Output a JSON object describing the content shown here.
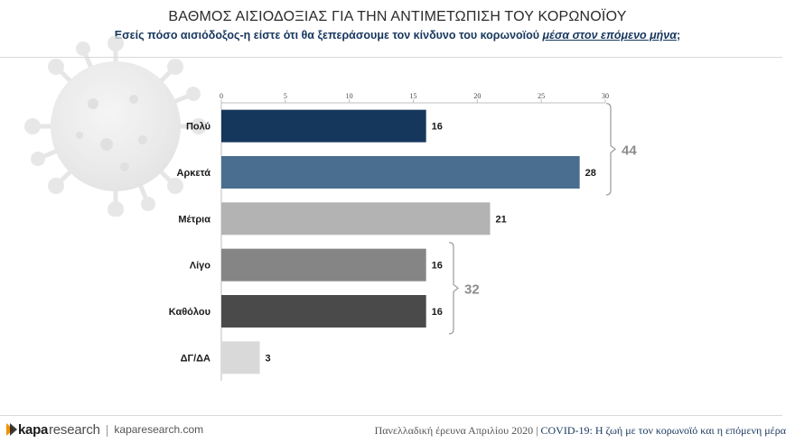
{
  "header": {
    "title": "ΒΑΘΜΟΣ ΑΙΣΙΟΔΟΞΙΑΣ ΓΙΑ ΤΗΝ ΑΝΤΙΜΕΤΩΠΙΣΗ ΤΟΥ ΚΟΡΩΝΟΪΟΥ",
    "subtitle_prefix": "Εσείς πόσο αισιόδοξος-η είστε ότι θα ξεπεράσουμε τον κίνδυνο του κορωνοϊού ",
    "subtitle_emphasis": "μέσα στον επόμενο μήνα",
    "subtitle_suffix": ";"
  },
  "chart_data": {
    "type": "bar",
    "orientation": "horizontal",
    "categories": [
      "Πολύ",
      "Αρκετά",
      "Μέτρια",
      "Λίγο",
      "Καθόλου",
      "ΔΓ/ΔΑ"
    ],
    "values": [
      16,
      28,
      21,
      16,
      16,
      3
    ],
    "colors": [
      "#16375c",
      "#4a6e8f",
      "#b3b3b3",
      "#858585",
      "#4a4a4a",
      "#d9d9d9"
    ],
    "xlim": [
      0,
      30
    ],
    "xticks": [
      0,
      5,
      10,
      15,
      20,
      25,
      30
    ],
    "xaxis_position": "top",
    "groups": [
      {
        "label": "44",
        "from": 0,
        "to": 1
      },
      {
        "label": "32",
        "from": 3,
        "to": 4
      }
    ]
  },
  "footer": {
    "logo_part1": "kapa",
    "logo_part2": "research",
    "separator": "|",
    "website": "kaparesearch.com",
    "survey_prefix": "Πανελλαδική έρευνα Απριλίου 2020 | ",
    "survey_highlight": "COVID-19:",
    "survey_suffix": " Η ζωή με τον κορωνοϊό και η επόμενη μέρα"
  },
  "colors": {
    "title": "#2b2b2b",
    "subtitle": "#17375e",
    "bracket": "#9a9a9a",
    "group_label": "#8c8c8c"
  }
}
